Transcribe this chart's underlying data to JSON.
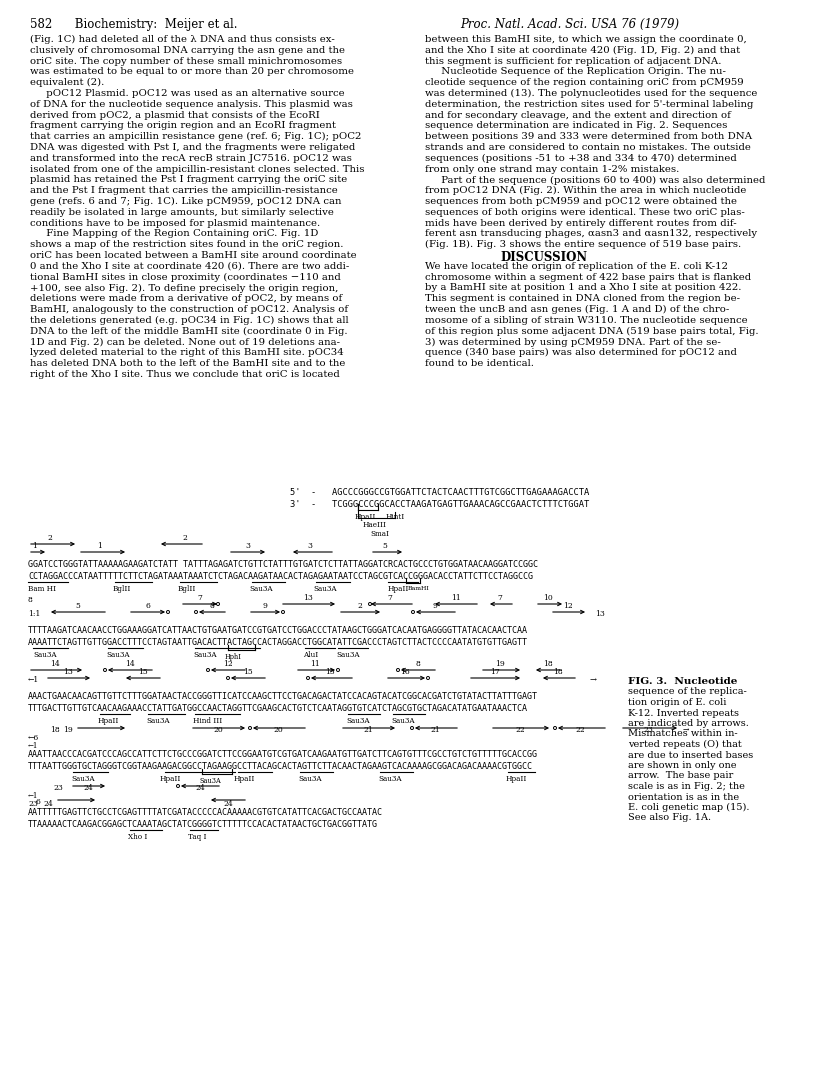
{
  "title_left": "582      Biochemistry:  Meijer et al.",
  "title_right": "Proc. Natl. Acad. Sci. USA 76 (1979)",
  "left_column_text": [
    "(Fig. 1C) had deleted all of the λ DNA and thus consists ex-",
    "clusively of chromosomal DNA carrying the asn gene and the",
    "oriC site. The copy number of these small minichromosomes",
    "was estimated to be equal to or more than 20 per chromosome",
    "equivalent (2).",
    "     pOC12 Plasmid. pOC12 was used as an alternative source",
    "of DNA for the nucleotide sequence analysis. This plasmid was",
    "derived from pOC2, a plasmid that consists of the EcoRI",
    "fragment carrying the origin region and an EcoRI fragment",
    "that carries an ampicillin resistance gene (ref. 6; Fig. 1C); pOC2",
    "DNA was digested with Pst I, and the fragments were religated",
    "and transformed into the recA recB strain JC7516. pOC12 was",
    "isolated from one of the ampicillin-resistant clones selected. This",
    "plasmid has retained the Pst I fragment carrying the oriC site",
    "and the Pst I fragment that carries the ampicillin-resistance",
    "gene (refs. 6 and 7; Fig. 1C). Like pCM959, pOC12 DNA can",
    "readily be isolated in large amounts, but similarly selective",
    "conditions have to be imposed for plasmid maintenance.",
    "     Fine Mapping of the Region Containing oriC. Fig. 1D",
    "shows a map of the restriction sites found in the oriC region.",
    "oriC has been located between a BamHI site around coordinate",
    "0 and the Xho I site at coordinate 420 (6). There are two addi-",
    "tional BamHI sites in close proximity (coordinates −110 and",
    "+100, see also Fig. 2). To define precisely the origin region,",
    "deletions were made from a derivative of pOC2, by means of",
    "BamHI, analogously to the construction of pOC12. Analysis of",
    "the deletions generated (e.g. pOC34 in Fig. 1C) shows that all",
    "DNA to the left of the middle BamHI site (coordinate 0 in Fig.",
    "1D and Fig. 2) can be deleted. None out of 19 deletions ana-",
    "lyzed deleted material to the right of this BamHI site. pOC34",
    "has deleted DNA both to the left of the BamHI site and to the",
    "right of the Xho I site. Thus we conclude that oriC is located"
  ],
  "right_column_text": [
    "between this BamHI site, to which we assign the coordinate 0,",
    "and the Xho I site at coordinate 420 (Fig. 1D, Fig. 2) and that",
    "this segment is sufficient for replication of adjacent DNA.",
    "     Nucleotide Sequence of the Replication Origin. The nu-",
    "cleotide sequence of the region containing oriC from pCM959",
    "was determined (13). The polynucleotides used for the sequence",
    "determination, the restriction sites used for 5'-terminal labeling",
    "and for secondary cleavage, and the extent and direction of",
    "sequence determination are indicated in Fig. 2. Sequences",
    "between positions 39 and 333 were determined from both DNA",
    "strands and are considered to contain no mistakes. The outside",
    "sequences (positions -51 to +38 and 334 to 470) determined",
    "from only one strand may contain 1-2% mistakes.",
    "     Part of the sequence (positions 60 to 400) was also determined",
    "from pOC12 DNA (Fig. 2). Within the area in which nucleotide",
    "sequences from both pCM959 and pOC12 were obtained the",
    "sequences of both origins were identical. These two oriC plas-",
    "mids have been derived by entirely different routes from dif-",
    "ferent asn transducing phages, αasn3 and αasn132, respectively",
    "(Fig. 1B). Fig. 3 shows the entire sequence of 519 base pairs.",
    "DISCUSSION",
    "We have located the origin of replication of the E. coli K-12",
    "chromosome within a segment of 422 base pairs that is flanked",
    "by a BamHI site at position 1 and a Xho I site at position 422.",
    "This segment is contained in DNA cloned from the region be-",
    "tween the uncB and asn genes (Fig. 1 A and D) of the chro-",
    "mosome of a sibling of strain W3110. The nucleotide sequence",
    "of this region plus some adjacent DNA (519 base pairs total, Fig.",
    "3) was determined by using pCM959 DNA. Part of the se-",
    "quence (340 base pairs) was also determined for pOC12 and",
    "found to be identical."
  ],
  "fig_caption_lines": [
    "FIG. 3.  Nucleotide",
    "sequence of the replica-",
    "tion origin of E. coli",
    "K-12. Inverted repeats",
    "are indicated by arrows.",
    "Mismatches within in-",
    "verted repeats (O) that",
    "are due to inserted bases",
    "are shown in only one",
    "arrow.  The base pair",
    "scale is as in Fig. 2; the",
    "orientation is as in the",
    "E. coli genetic map (15).",
    "See also Fig. 1A."
  ],
  "background_color": "#ffffff",
  "text_color": "#000000",
  "font_size": 7.5,
  "header_font_size": 9
}
